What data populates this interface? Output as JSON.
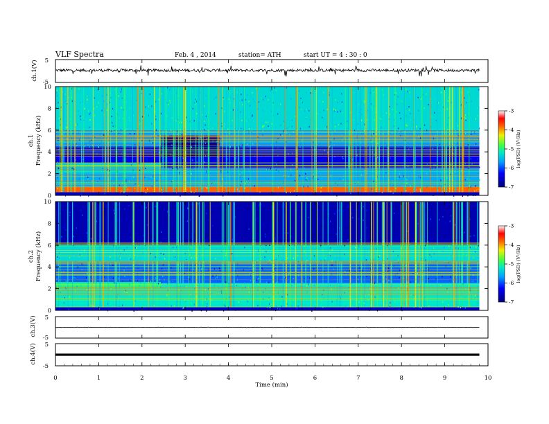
{
  "header": {
    "title": "VLF  Spectra",
    "date": "Feb. 4  , 2014",
    "station": "station= ATH",
    "start": "start  UT  =   4  : 30 : 0"
  },
  "colors": {
    "background": "#ffffff",
    "axis": "#000000",
    "trace": "#000000",
    "spectrogram_ch1": "#2fc3d8",
    "spectrogram_ch2": "#1e6fe0"
  },
  "chart_data": [
    {
      "type": "line",
      "panel": "ch1-waveform",
      "ylabel": "ch.1(V)",
      "ylim": [
        -5,
        5
      ],
      "yticks": [
        "5",
        "-5"
      ],
      "xlim": [
        0,
        10
      ],
      "description_level": 1.2,
      "trace": {
        "baseline": 0.3,
        "noise_amplitude": 0.6,
        "spike_min": -2.5,
        "spike_max": 2.5,
        "end_time": 9.8
      }
    },
    {
      "type": "heatmap",
      "panel": "ch1-spectrogram",
      "ylabel_top": "ch.1",
      "ylabel": "Frequency  (kHz)",
      "ylim": [
        0,
        10
      ],
      "yticks": [
        "0",
        "2",
        "4",
        "6",
        "8",
        "10"
      ],
      "xlim": [
        0,
        10
      ],
      "data_end_time": 9.8,
      "colorbar": {
        "label": "log(PSD) (V²/Hz)",
        "range": [
          -7,
          -3
        ],
        "ticks": [
          "-3",
          "-4",
          "-5",
          "-6",
          "-7"
        ]
      },
      "bands": [
        {
          "freq": [
            0.0,
            0.3
          ],
          "level": -6.6
        },
        {
          "freq": [
            0.3,
            0.8
          ],
          "level": -3.8
        },
        {
          "freq": [
            0.8,
            2.5
          ],
          "level": -5.6
        },
        {
          "freq": [
            2.5,
            4.5
          ],
          "level": -6.4
        },
        {
          "freq": [
            4.5,
            6.0
          ],
          "level": -5.7
        },
        {
          "freq": [
            6.0,
            10.0
          ],
          "level": -5.3
        }
      ],
      "events": [
        {
          "time": [
            2.45,
            3.8
          ],
          "freq": [
            3.5,
            5.5
          ],
          "level": -6.8
        },
        {
          "time": [
            0.0,
            2.45
          ],
          "freq": [
            2.0,
            3.0
          ],
          "level": -5.4
        }
      ]
    },
    {
      "type": "heatmap",
      "panel": "ch2-spectrogram",
      "ylabel_top": "ch.2",
      "ylabel": "Frequency  (kHz)",
      "ylim": [
        0,
        10
      ],
      "yticks": [
        "0",
        "2",
        "4",
        "6",
        "8",
        "10"
      ],
      "xlim": [
        0,
        10
      ],
      "data_end_time": 9.8,
      "colorbar": {
        "label": "log(PSD) (V²/Hz)",
        "range": [
          -7,
          -3
        ],
        "ticks": [
          "-3",
          "-4",
          "-5",
          "-6",
          "-7"
        ]
      },
      "bands": [
        {
          "freq": [
            0.0,
            0.3
          ],
          "level": -6.6
        },
        {
          "freq": [
            0.3,
            2.5
          ],
          "level": -5.2
        },
        {
          "freq": [
            2.5,
            4.5
          ],
          "level": -5.9
        },
        {
          "freq": [
            4.5,
            6.0
          ],
          "level": -5.3
        },
        {
          "freq": [
            6.0,
            10.0
          ],
          "level": -6.7
        }
      ],
      "events": [
        {
          "time": [
            0.0,
            2.45
          ],
          "freq": [
            2.0,
            2.6
          ],
          "level": -5.0
        }
      ]
    },
    {
      "type": "line",
      "panel": "ch3-waveform",
      "ylabel": "ch.3(V)",
      "ylim": [
        -5,
        5
      ],
      "yticks": [
        "5",
        "-5"
      ],
      "xlim": [
        0,
        10
      ],
      "trace": {
        "baseline": 0.0,
        "noise_amplitude": 0.1,
        "end_time": 9.8
      }
    },
    {
      "type": "line",
      "panel": "ch4-waveform",
      "ylabel": "ch.4(V)",
      "ylim": [
        -5,
        5
      ],
      "yticks": [
        "5",
        "-5"
      ],
      "xlim": [
        0,
        10
      ],
      "trace": {
        "baseline": 0.0,
        "band_halfwidth": 0.5,
        "end_time": 9.8
      }
    }
  ],
  "xaxis": {
    "label": "Time  (min)",
    "range": [
      0,
      10
    ],
    "ticks": [
      "0",
      "1",
      "2",
      "3",
      "4",
      "5",
      "6",
      "7",
      "8",
      "9",
      "10"
    ]
  }
}
